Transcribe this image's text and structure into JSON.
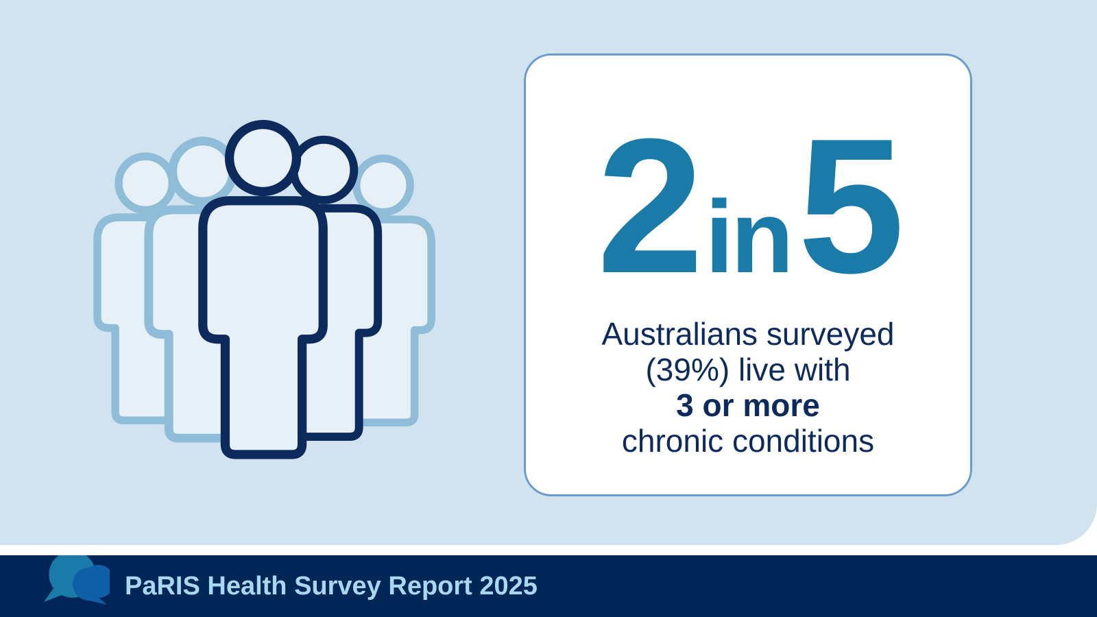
{
  "stat": {
    "numerator": "2",
    "connector": "in",
    "denominator": "5"
  },
  "description": {
    "lines": [
      "Australians surveyed",
      "(39%) live with",
      "3 or more",
      "chronic conditions"
    ]
  },
  "footer": {
    "title": "PaRIS Health Survey Report 2025"
  }
}
